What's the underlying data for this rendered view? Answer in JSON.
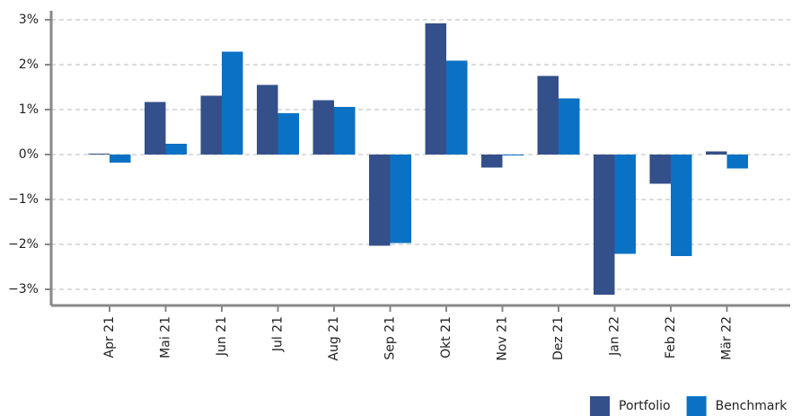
{
  "chart_data": {
    "type": "bar",
    "categories": [
      "Apr 21",
      "Mai 21",
      "Jun 21",
      "Jul 21",
      "Aug 21",
      "Sep 21",
      "Okt 21",
      "Nov 21",
      "Dez 21",
      "Jan 22",
      "Feb 22",
      "Mär 22"
    ],
    "series": [
      {
        "name": "Portfolio",
        "color": "#34508a",
        "values": [
          0.02,
          1.17,
          1.31,
          1.55,
          1.21,
          -2.03,
          2.92,
          -0.29,
          1.75,
          -3.12,
          -0.65,
          0.07
        ]
      },
      {
        "name": "Benchmark",
        "color": "#0a72c4",
        "values": [
          -0.18,
          0.24,
          2.29,
          0.92,
          1.06,
          -1.97,
          2.09,
          -0.02,
          1.25,
          -2.21,
          -2.26,
          -0.31
        ]
      }
    ],
    "ylim": [
      -3.36,
      3.2
    ],
    "yticks": [
      {
        "value": 3,
        "label": "3%"
      },
      {
        "value": 2,
        "label": "2%"
      },
      {
        "value": 1,
        "label": "1%"
      },
      {
        "value": 0,
        "label": "0%"
      },
      {
        "value": -1,
        "label": "−1%"
      },
      {
        "value": -2,
        "label": "−2%"
      },
      {
        "value": -3,
        "label": "−3%"
      }
    ],
    "grid": true,
    "legend": "lower right"
  }
}
